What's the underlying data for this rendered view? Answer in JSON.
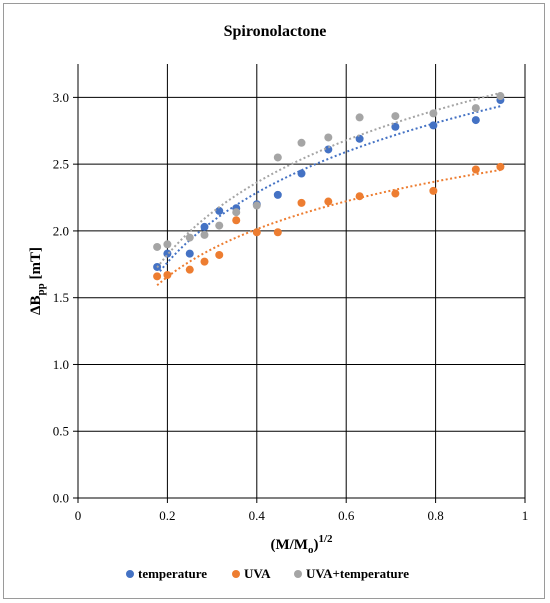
{
  "chart_data": {
    "type": "scatter",
    "title": "Spironolactone",
    "xlabel": {
      "base": "(M/M",
      "sub": "o",
      "post": ")",
      "sup": "1/2"
    },
    "ylabel": {
      "base": "ΔB",
      "sub": "pp",
      "post": " [mT]"
    },
    "xlim": [
      0,
      1
    ],
    "ylim": [
      0,
      3.25
    ],
    "xticks": [
      0,
      0.2,
      0.4,
      0.6,
      0.8,
      1
    ],
    "xtick_labels": [
      "0",
      "0.2",
      "0.4",
      "0.6",
      "0.8",
      "1"
    ],
    "yticks": [
      0,
      0.5,
      1,
      1.5,
      2,
      2.5,
      3
    ],
    "ytick_labels": [
      "0.0",
      "0.5",
      "1.0",
      "1.5",
      "2.0",
      "2.5",
      "3.0"
    ],
    "grid": true,
    "legend_position": "bottom",
    "trendlines": "dotted",
    "series": [
      {
        "name": "temperature",
        "color": "#4472C4",
        "points": [
          [
            0.177,
            1.73
          ],
          [
            0.2,
            1.83
          ],
          [
            0.25,
            1.83
          ],
          [
            0.283,
            2.03
          ],
          [
            0.316,
            2.15
          ],
          [
            0.354,
            2.17
          ],
          [
            0.4,
            2.2
          ],
          [
            0.447,
            2.27
          ],
          [
            0.5,
            2.43
          ],
          [
            0.56,
            2.61
          ],
          [
            0.63,
            2.69
          ],
          [
            0.71,
            2.78
          ],
          [
            0.795,
            2.79
          ],
          [
            0.89,
            2.83
          ],
          [
            0.945,
            2.98
          ]
        ]
      },
      {
        "name": "UVA",
        "color": "#ED7D31",
        "points": [
          [
            0.177,
            1.66
          ],
          [
            0.2,
            1.67
          ],
          [
            0.25,
            1.71
          ],
          [
            0.283,
            1.77
          ],
          [
            0.316,
            1.82
          ],
          [
            0.354,
            2.08
          ],
          [
            0.4,
            1.99
          ],
          [
            0.447,
            1.99
          ],
          [
            0.5,
            2.21
          ],
          [
            0.56,
            2.22
          ],
          [
            0.63,
            2.26
          ],
          [
            0.71,
            2.28
          ],
          [
            0.795,
            2.3
          ],
          [
            0.89,
            2.46
          ],
          [
            0.945,
            2.48
          ]
        ]
      },
      {
        "name": "UVA+temperature",
        "color": "#A5A5A5",
        "points": [
          [
            0.177,
            1.88
          ],
          [
            0.2,
            1.9
          ],
          [
            0.25,
            1.95
          ],
          [
            0.283,
            1.97
          ],
          [
            0.316,
            2.04
          ],
          [
            0.354,
            2.14
          ],
          [
            0.4,
            2.19
          ],
          [
            0.447,
            2.55
          ],
          [
            0.5,
            2.66
          ],
          [
            0.56,
            2.7
          ],
          [
            0.63,
            2.85
          ],
          [
            0.71,
            2.86
          ],
          [
            0.795,
            2.88
          ],
          [
            0.89,
            2.92
          ],
          [
            0.945,
            3.01
          ]
        ]
      }
    ]
  }
}
